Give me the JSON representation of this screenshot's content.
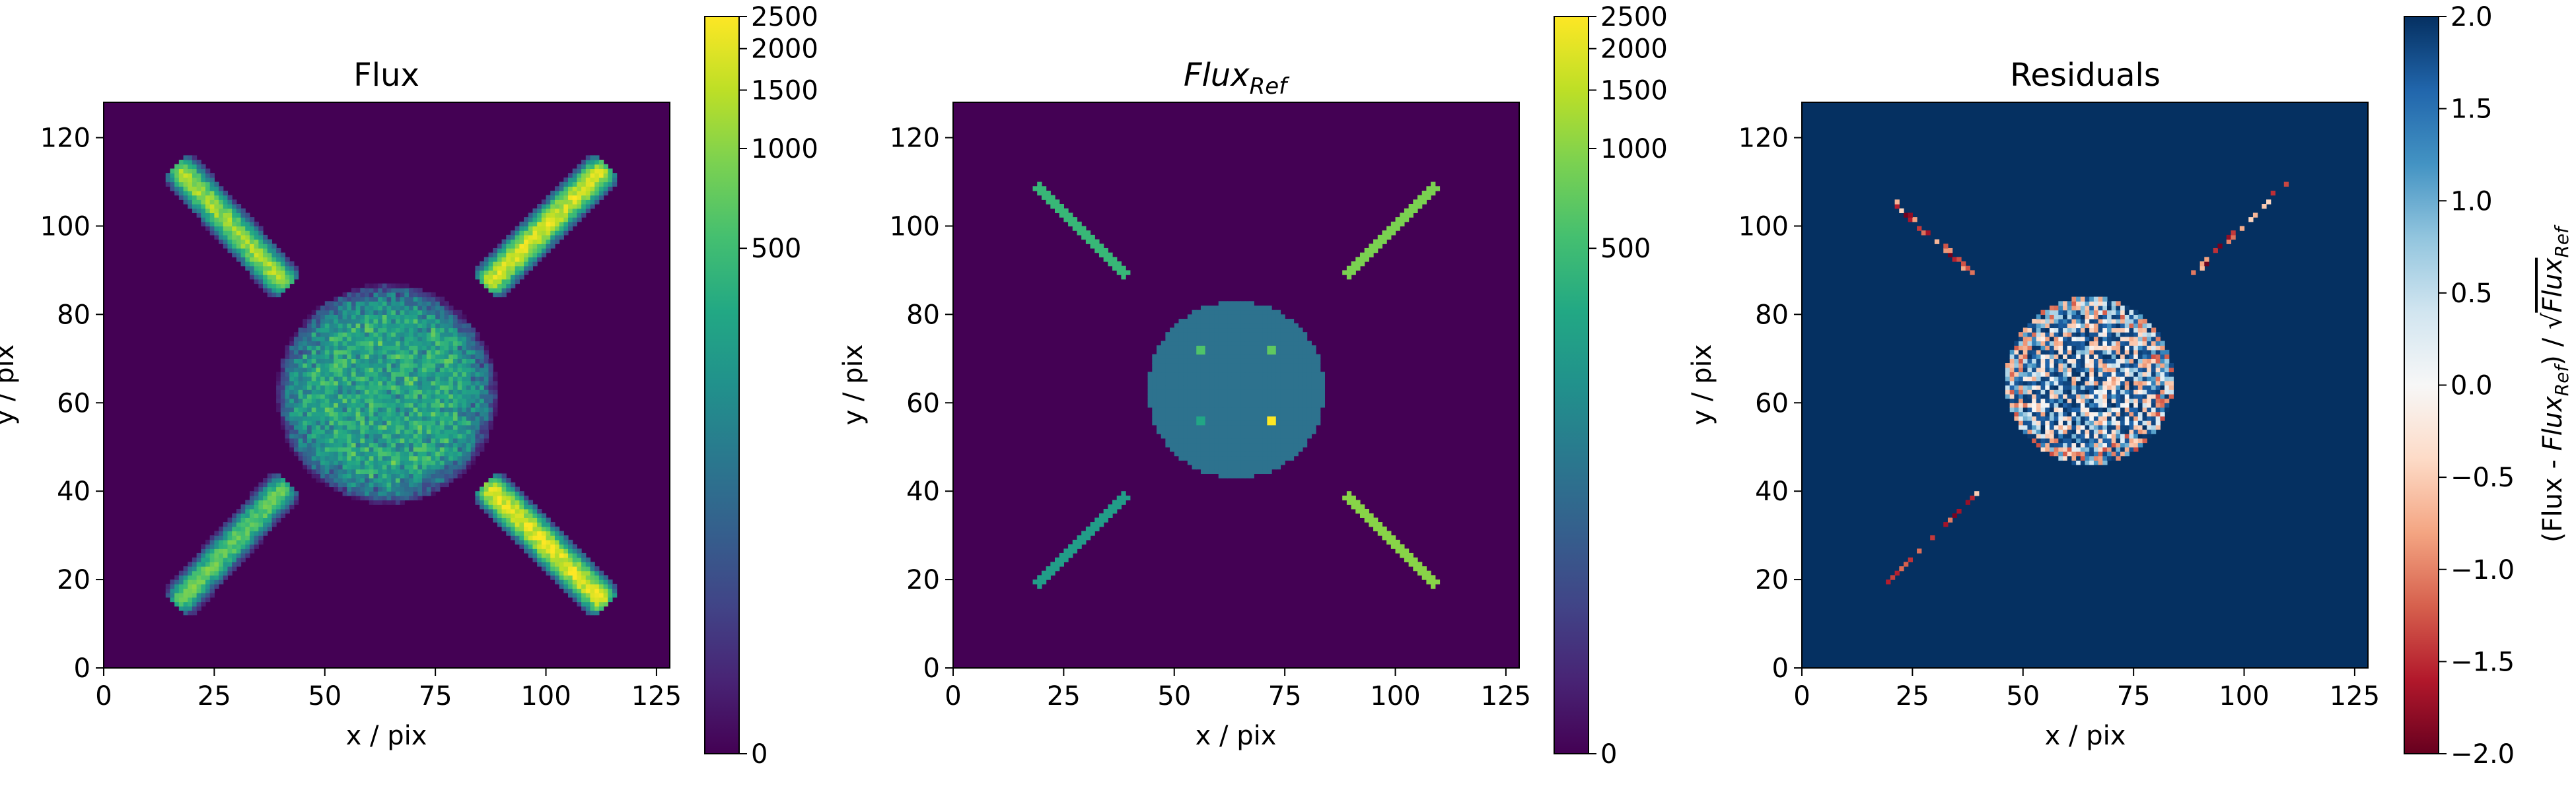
{
  "chart_data": [
    {
      "type": "heatmap",
      "title": "Flux",
      "xlabel": "x / pix",
      "ylabel": "y / pix",
      "xlim": [
        0,
        128
      ],
      "ylim": [
        0,
        128
      ],
      "xticks": [
        "0",
        "25",
        "50",
        "75",
        "100",
        "125"
      ],
      "yticks": [
        "0",
        "20",
        "40",
        "60",
        "80",
        "100",
        "120"
      ],
      "colormap": "viridis",
      "colorbar": {
        "scale": "asinh",
        "range": [
          0,
          2500
        ],
        "ticks": [
          "0",
          "500",
          "1000",
          "1500",
          "2000",
          "2500"
        ]
      },
      "features": {
        "central_disk": {
          "center": [
            64,
            62
          ],
          "radius": 20,
          "mean_level": 500
        },
        "diagonal_bars": [
          {
            "from": [
              18,
              112
            ],
            "to": [
              40,
              88
            ],
            "peak_level": 1500
          },
          {
            "from": [
              88,
              88
            ],
            "to": [
              112,
              112
            ],
            "peak_level": 2200
          },
          {
            "from": [
              18,
              16
            ],
            "to": [
              40,
              40
            ],
            "peak_level": 900
          },
          {
            "from": [
              88,
              40
            ],
            "to": [
              112,
              16
            ],
            "peak_level": 2500
          }
        ]
      }
    },
    {
      "type": "heatmap",
      "title_base": "Flux",
      "title_sub": "Ref",
      "xlabel": "x / pix",
      "ylabel": "y / pix",
      "xlim": [
        0,
        128
      ],
      "ylim": [
        0,
        128
      ],
      "xticks": [
        "0",
        "25",
        "50",
        "75",
        "100",
        "125"
      ],
      "yticks": [
        "0",
        "20",
        "40",
        "60",
        "80",
        "100",
        "120"
      ],
      "colormap": "viridis",
      "colorbar": {
        "scale": "asinh",
        "range": [
          0,
          2500
        ],
        "ticks": [
          "0",
          "500",
          "1000",
          "1500",
          "2000",
          "2500"
        ]
      },
      "features": {
        "central_disk": {
          "center": [
            64,
            63
          ],
          "radius": 20,
          "level": 100
        },
        "point_sources": [
          [
            56,
            72,
            600
          ],
          [
            72,
            72,
            700
          ],
          [
            56,
            56,
            300
          ],
          [
            72,
            56,
            2500
          ]
        ],
        "diagonal_bars": [
          {
            "from": [
              19,
              109
            ],
            "to": [
              39,
              89
            ],
            "level": 450
          },
          {
            "from": [
              89,
              89
            ],
            "to": [
              109,
              109
            ],
            "level": 900
          },
          {
            "from": [
              19,
              19
            ],
            "to": [
              39,
              39
            ],
            "level": 250
          },
          {
            "from": [
              89,
              39
            ],
            "to": [
              109,
              19
            ],
            "level": 1000
          }
        ]
      }
    },
    {
      "type": "heatmap",
      "title": "Residuals",
      "xlabel": "x / pix",
      "ylabel": "y / pix",
      "xlim": [
        0,
        128
      ],
      "ylim": [
        0,
        128
      ],
      "xticks": [
        "0",
        "25",
        "50",
        "75",
        "100",
        "125"
      ],
      "yticks": [
        "0",
        "20",
        "40",
        "60",
        "80",
        "100",
        "120"
      ],
      "colormap": "RdBu",
      "colorbar": {
        "range": [
          -2,
          2
        ],
        "ticks": [
          "−2.0",
          "−1.5",
          "−1.0",
          "−0.5",
          "0.0",
          "0.5",
          "1.0",
          "1.5",
          "2.0"
        ],
        "label_prefix": "(Flux - ",
        "label_flux": "Flux",
        "label_sub": "Ref",
        "label_mid": ") / √",
        "label_flux2": "Flux",
        "label_sub2": "Ref"
      },
      "background_level": 2.0,
      "features": {
        "central_disk": {
          "center": [
            65,
            65
          ],
          "radius": 19
        },
        "diagonal_bars": [
          {
            "from": [
              20,
              106
            ],
            "to": [
              39,
              89
            ]
          },
          {
            "from": [
              88,
              89
            ],
            "to": [
              110,
              110
            ]
          },
          {
            "from": [
              19,
              19
            ],
            "to": [
              40,
              40
            ]
          }
        ]
      }
    }
  ]
}
